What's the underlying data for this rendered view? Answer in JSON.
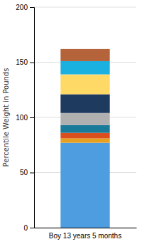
{
  "chart_data": {
    "type": "bar",
    "stacked": true,
    "ylabel": "Percentile Weight in Pounds",
    "categories": [
      "Boy 13 years 5 months"
    ],
    "series": [
      {
        "color": "#4d9de0",
        "values": [
          77
        ]
      },
      {
        "color": "#e8a020",
        "values": [
          4
        ]
      },
      {
        "color": "#d94f1e",
        "values": [
          5
        ]
      },
      {
        "color": "#1a7a9a",
        "values": [
          7
        ]
      },
      {
        "color": "#b0b0b0",
        "values": [
          11
        ]
      },
      {
        "color": "#1e3a5f",
        "values": [
          17
        ]
      },
      {
        "color": "#ffd966",
        "values": [
          18
        ]
      },
      {
        "color": "#1ab0e0",
        "values": [
          12
        ]
      },
      {
        "color": "#b5633a",
        "values": [
          11
        ]
      }
    ],
    "ylim": [
      0,
      200
    ],
    "yticks": [
      0,
      50,
      100,
      150,
      200
    ],
    "grid": true
  }
}
